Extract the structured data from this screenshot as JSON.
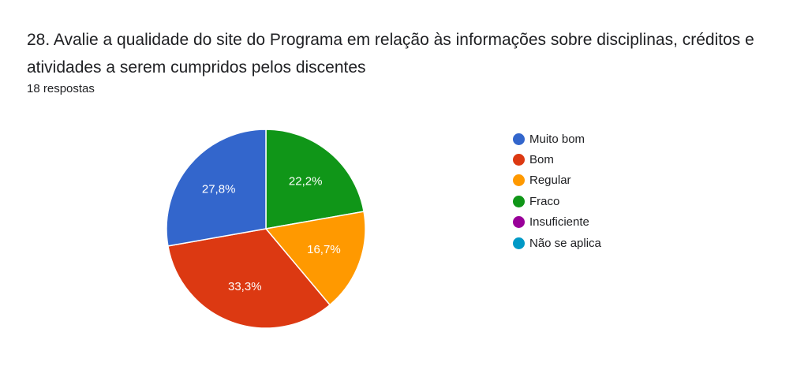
{
  "header": {
    "title": "28. Avalie a qualidade do site do Programa em relação às informações sobre disciplinas, créditos e atividades a serem cumpridos pelos discentes",
    "responses": "18 respostas"
  },
  "chart_data": {
    "type": "pie",
    "categories": [
      "Muito bom",
      "Bom",
      "Regular",
      "Fraco",
      "Insuficiente",
      "Não se aplica"
    ],
    "values": [
      5,
      6,
      3,
      4,
      0,
      0
    ],
    "percent_labels": [
      "27,8%",
      "33,3%",
      "16,7%",
      "22,2%",
      "",
      ""
    ],
    "colors": [
      "#3366cc",
      "#dc3912",
      "#ff9900",
      "#109618",
      "#990099",
      "#0099c6"
    ],
    "legend_position": "right"
  }
}
